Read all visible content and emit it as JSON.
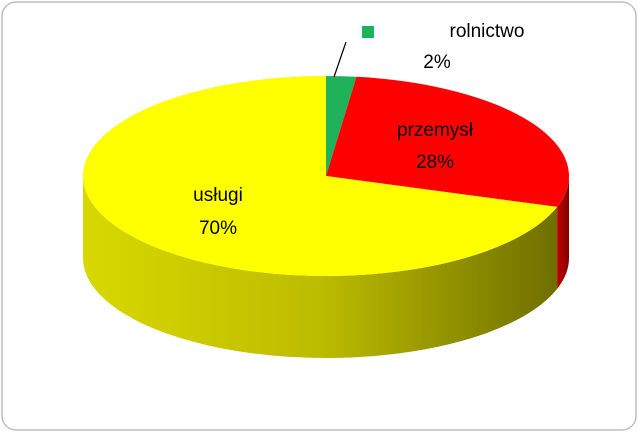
{
  "chart_data": {
    "type": "pie3d",
    "categories": [
      "rolnictwo",
      "przemysł",
      "usługi"
    ],
    "values": [
      2,
      28,
      70
    ],
    "value_labels": [
      "2%",
      "28%",
      "70%"
    ],
    "colors": [
      "#1fb25a",
      "#ff0000",
      "#ffff00"
    ]
  }
}
